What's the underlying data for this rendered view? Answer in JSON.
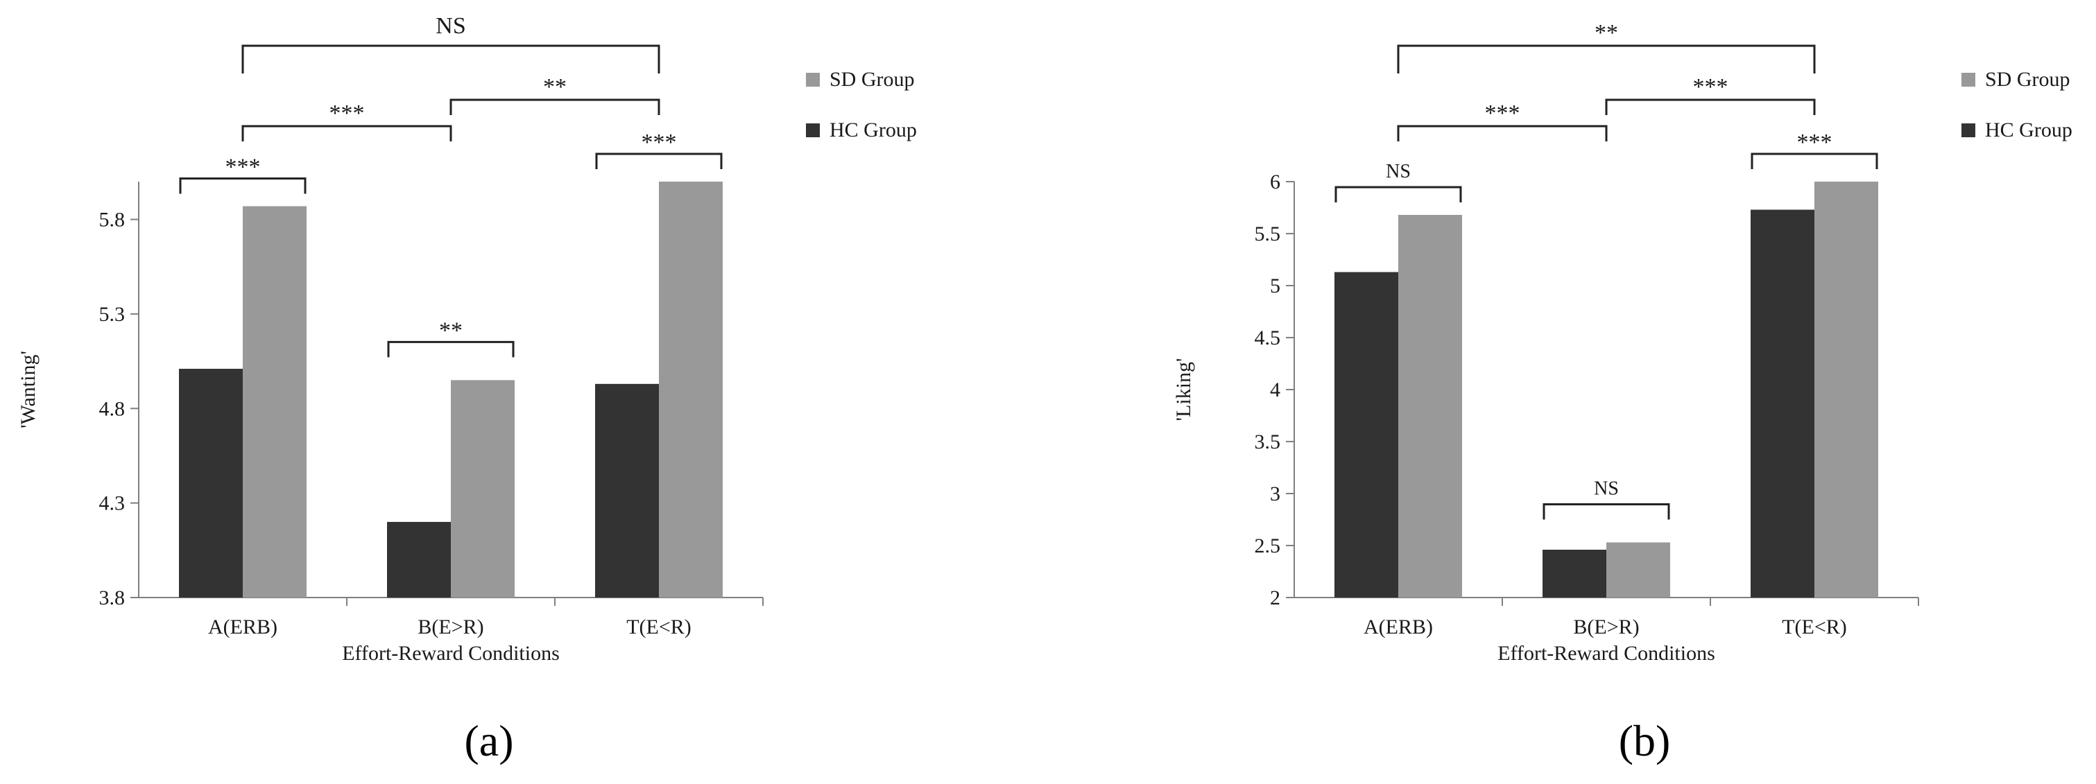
{
  "colors": {
    "hc": "#333333",
    "sd": "#999999",
    "axis": "#7f7f7f",
    "text": "#1a1a1a"
  },
  "chart_data": [
    {
      "type": "bar",
      "panel_label": "(a)",
      "categories": [
        "A(ERB)",
        "B(E>R)",
        "T(E<R)"
      ],
      "xlabel": "Effort-Reward Conditions",
      "ylabel": "'Wanting'",
      "ylim": [
        3.8,
        6.0
      ],
      "yticks": [
        3.8,
        4.3,
        4.8,
        5.3,
        5.8
      ],
      "ytick_labels": [
        "3.8",
        "4.3",
        "4.8",
        "5.3",
        "5.8"
      ],
      "series": [
        {
          "name": "HC Group",
          "values": [
            5.01,
            4.2,
            4.93
          ]
        },
        {
          "name": "SD Group",
          "values": [
            5.87,
            4.95,
            6.0
          ]
        }
      ],
      "legend": {
        "placement": "right",
        "entries": [
          "SD Group",
          "HC Group"
        ]
      },
      "annotations": [
        {
          "kind": "within",
          "category": 0,
          "label": "***"
        },
        {
          "kind": "within",
          "category": 1,
          "label": "**"
        },
        {
          "kind": "within",
          "category": 2,
          "label": "***"
        },
        {
          "kind": "between",
          "from": 0,
          "to": 1,
          "label": "***"
        },
        {
          "kind": "between",
          "from": 1,
          "to": 2,
          "label": "**"
        },
        {
          "kind": "between",
          "from": 0,
          "to": 2,
          "label": "NS"
        }
      ]
    },
    {
      "type": "bar",
      "panel_label": "(b)",
      "categories": [
        "A(ERB)",
        "B(E>R)",
        "T(E<R)"
      ],
      "xlabel": "Effort-Reward Conditions",
      "ylabel": "'Liking'",
      "ylim": [
        2,
        6
      ],
      "yticks": [
        2,
        2.5,
        3,
        3.5,
        4,
        4.5,
        5,
        5.5,
        6
      ],
      "ytick_labels": [
        "2",
        "2.5",
        "3",
        "3.5",
        "4",
        "4.5",
        "5",
        "5.5",
        "6"
      ],
      "series": [
        {
          "name": "HC Group",
          "values": [
            5.13,
            2.46,
            5.73
          ]
        },
        {
          "name": "SD Group",
          "values": [
            5.68,
            2.53,
            6.0
          ]
        }
      ],
      "legend": {
        "placement": "right",
        "entries": [
          "SD Group",
          "HC Group"
        ]
      },
      "annotations": [
        {
          "kind": "within",
          "category": 0,
          "label": "NS"
        },
        {
          "kind": "within",
          "category": 1,
          "label": "NS"
        },
        {
          "kind": "within",
          "category": 2,
          "label": "***"
        },
        {
          "kind": "between",
          "from": 0,
          "to": 1,
          "label": "***"
        },
        {
          "kind": "between",
          "from": 1,
          "to": 2,
          "label": "***"
        },
        {
          "kind": "between",
          "from": 0,
          "to": 2,
          "label": "**"
        }
      ]
    }
  ]
}
